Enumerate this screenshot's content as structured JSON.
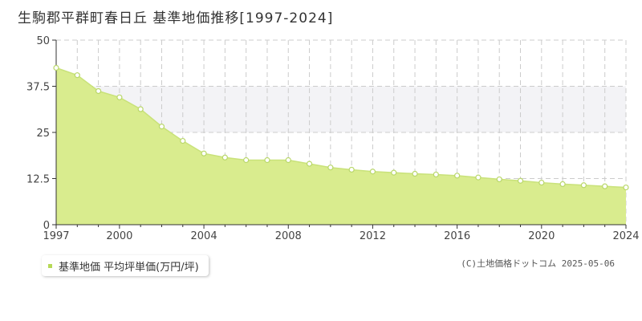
{
  "title": "生駒郡平群町春日丘 基準地価推移[1997-2024]",
  "copyright": "(C)土地価格ドットコム 2025-05-06",
  "colors": {
    "fill": "#d9ec8e",
    "line": "#c9e27a",
    "marker_stroke": "#b9d76a",
    "band": "#f3f3f6",
    "grid": "#cccccc",
    "axis": "#333333",
    "legend_swatch": "#b6d957"
  },
  "chart_data": {
    "type": "area",
    "x": [
      1997,
      1998,
      1999,
      2000,
      2001,
      2002,
      2003,
      2004,
      2005,
      2006,
      2007,
      2008,
      2009,
      2010,
      2011,
      2012,
      2013,
      2014,
      2015,
      2016,
      2017,
      2018,
      2019,
      2020,
      2021,
      2022,
      2023,
      2024
    ],
    "series": [
      {
        "name": "基準地価 平均坪単価(万円/坪)",
        "values": [
          42.5,
          40.5,
          36.2,
          34.5,
          31.3,
          26.6,
          22.7,
          19.3,
          18.2,
          17.5,
          17.5,
          17.5,
          16.5,
          15.5,
          14.9,
          14.4,
          14.1,
          13.8,
          13.6,
          13.3,
          12.8,
          12.3,
          11.9,
          11.4,
          11.0,
          10.7,
          10.4,
          10.1
        ]
      }
    ],
    "xlim": [
      1997,
      2024
    ],
    "ylim": [
      0,
      50
    ],
    "x_ticks": [
      "1997",
      "2000",
      "2004",
      "2008",
      "2012",
      "2016",
      "2020",
      "2024"
    ],
    "y_ticks": [
      "0",
      "12.5",
      "25",
      "37.5",
      "50"
    ],
    "grid": true,
    "band": [
      25,
      37.5
    ],
    "legend_position": "bottom-left"
  }
}
